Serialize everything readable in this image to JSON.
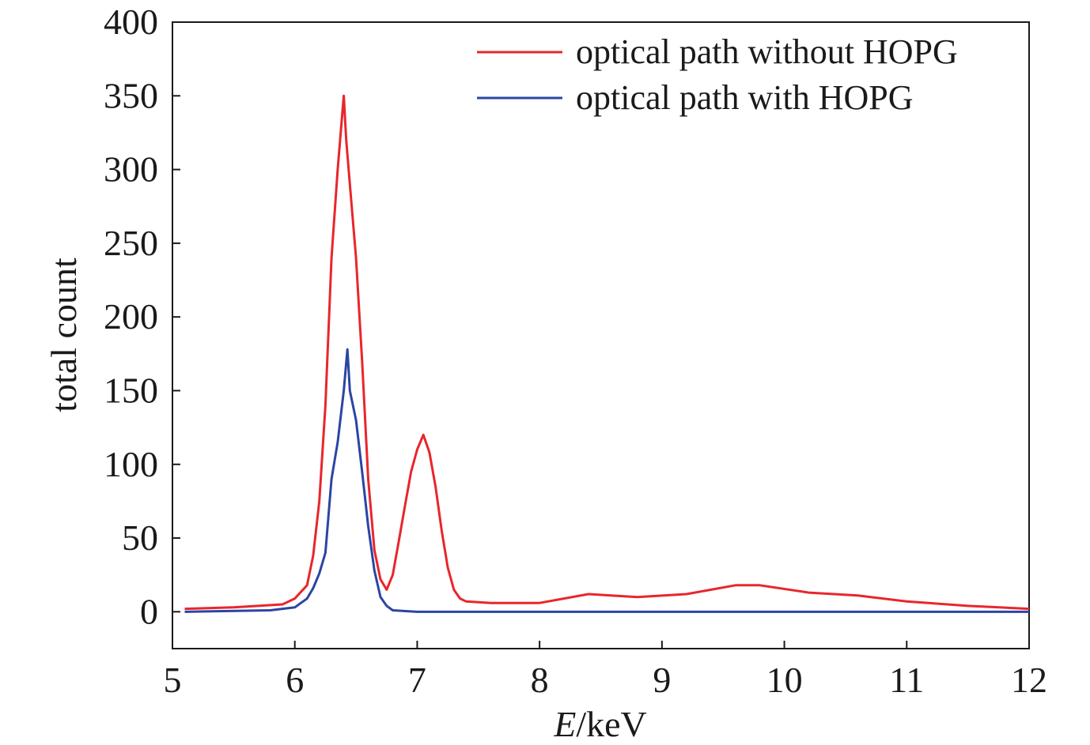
{
  "chart_data": {
    "type": "line",
    "xlabel_italic": "E",
    "xlabel_rest": "/keV",
    "ylabel": "total count",
    "xlim": [
      5,
      12
    ],
    "ylim": [
      -25,
      400
    ],
    "xticks": [
      5,
      6,
      7,
      8,
      9,
      10,
      11,
      12
    ],
    "yticks": [
      0,
      50,
      100,
      150,
      200,
      250,
      300,
      350,
      400
    ],
    "grid": false,
    "legend_position": "top-right",
    "series": [
      {
        "name": "optical path without HOPG",
        "color": "#e8262c",
        "x": [
          5.1,
          5.5,
          5.9,
          6.0,
          6.1,
          6.15,
          6.2,
          6.25,
          6.3,
          6.35,
          6.38,
          6.4,
          6.42,
          6.45,
          6.5,
          6.55,
          6.6,
          6.65,
          6.7,
          6.75,
          6.8,
          6.85,
          6.9,
          6.95,
          7.0,
          7.05,
          7.1,
          7.15,
          7.2,
          7.25,
          7.3,
          7.35,
          7.4,
          7.6,
          8.0,
          8.4,
          8.8,
          9.2,
          9.6,
          9.8,
          10.2,
          10.6,
          11.0,
          11.5,
          12.0
        ],
        "y": [
          2,
          3,
          5,
          9,
          18,
          38,
          75,
          140,
          240,
          300,
          330,
          350,
          320,
          290,
          240,
          170,
          90,
          42,
          22,
          15,
          25,
          48,
          72,
          95,
          110,
          120,
          108,
          85,
          55,
          30,
          15,
          9,
          7,
          6,
          6,
          12,
          10,
          12,
          18,
          18,
          13,
          11,
          7,
          4,
          2
        ]
      },
      {
        "name": "optical path with HOPG",
        "color": "#2b45a3",
        "x": [
          5.1,
          5.8,
          6.0,
          6.1,
          6.15,
          6.2,
          6.25,
          6.3,
          6.35,
          6.4,
          6.43,
          6.45,
          6.5,
          6.55,
          6.6,
          6.65,
          6.7,
          6.75,
          6.8,
          7.0,
          8.0,
          9.0,
          10.0,
          11.0,
          12.0
        ],
        "y": [
          0,
          1,
          3,
          9,
          16,
          26,
          40,
          90,
          115,
          150,
          178,
          150,
          130,
          95,
          58,
          28,
          10,
          4,
          1,
          0,
          0,
          0,
          0,
          0,
          0
        ]
      }
    ]
  }
}
